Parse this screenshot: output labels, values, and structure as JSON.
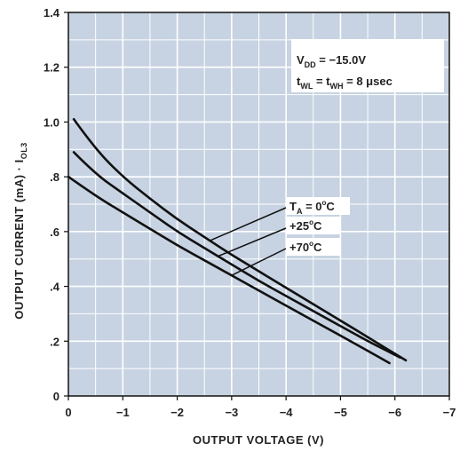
{
  "chart_data": {
    "type": "line",
    "xlabel": "OUTPUT VOLTAGE (V)",
    "ylabel": "OUTPUT CURRENT (mA) · I",
    "ylabel_sub": "OL3",
    "xlim": [
      0,
      -7
    ],
    "ylim": [
      0,
      1.4
    ],
    "grid": true,
    "x_ticks": [
      {
        "value": 0,
        "label": "0"
      },
      {
        "value": -1,
        "label": "−1"
      },
      {
        "value": -2,
        "label": "−2"
      },
      {
        "value": -3,
        "label": "−3"
      },
      {
        "value": -4,
        "label": "−4"
      },
      {
        "value": -5,
        "label": "−5"
      },
      {
        "value": -6,
        "label": "−6"
      },
      {
        "value": -7,
        "label": "−7"
      }
    ],
    "y_ticks": [
      {
        "value": 0,
        "label": "0"
      },
      {
        "value": 0.2,
        "label": ".2"
      },
      {
        "value": 0.4,
        "label": ".4"
      },
      {
        "value": 0.6,
        "label": ".6"
      },
      {
        "value": 0.8,
        "label": ".8"
      },
      {
        "value": 1.0,
        "label": "1.0"
      },
      {
        "value": 1.2,
        "label": "1.2"
      },
      {
        "value": 1.4,
        "label": "1.4"
      }
    ],
    "conditions": {
      "vdd": {
        "main": "V",
        "sub": "DD",
        "rest": " = −15.0V"
      },
      "timing": {
        "t1": "t",
        "sub1": "WL",
        "mid": " = t",
        "sub2": "WH",
        "rest": " = 8 μsec"
      }
    },
    "series": [
      {
        "name": "T_A = 0°C",
        "x": [
          -0.1,
          -0.5,
          -1,
          -1.5,
          -2,
          -2.5,
          -3,
          -3.5,
          -4,
          -4.5,
          -5,
          -5.5,
          -6.2
        ],
        "y": [
          1.01,
          0.9,
          0.8,
          0.72,
          0.645,
          0.58,
          0.515,
          0.455,
          0.395,
          0.335,
          0.275,
          0.215,
          0.13
        ]
      },
      {
        "name": "+25°C",
        "x": [
          -0.1,
          -0.5,
          -1,
          -1.5,
          -2,
          -2.5,
          -3,
          -3.5,
          -4,
          -4.5,
          -5,
          -5.5,
          -6.1
        ],
        "y": [
          0.89,
          0.81,
          0.74,
          0.67,
          0.6,
          0.54,
          0.48,
          0.42,
          0.365,
          0.31,
          0.255,
          0.2,
          0.14
        ]
      },
      {
        "name": "+70°C",
        "x": [
          0,
          -0.5,
          -1,
          -1.5,
          -2,
          -2.5,
          -3,
          -3.5,
          -4,
          -4.5,
          -5,
          -5.5,
          -5.9
        ],
        "y": [
          0.8,
          0.73,
          0.67,
          0.61,
          0.55,
          0.495,
          0.44,
          0.385,
          0.33,
          0.275,
          0.22,
          0.165,
          0.12
        ]
      }
    ],
    "labels": [
      {
        "main": "T",
        "sub": "A",
        "rest": " = 0",
        "deg": "o",
        "unit": "C",
        "series": 0
      },
      {
        "main": "+25",
        "deg": "o",
        "unit": "C",
        "series": 1
      },
      {
        "main": "+70",
        "deg": "o",
        "unit": "C",
        "series": 2
      }
    ],
    "colors": {
      "plot_bg": "#c7d3e2",
      "grid": "#ffffff",
      "line": "#111111",
      "text": "#222222"
    }
  }
}
